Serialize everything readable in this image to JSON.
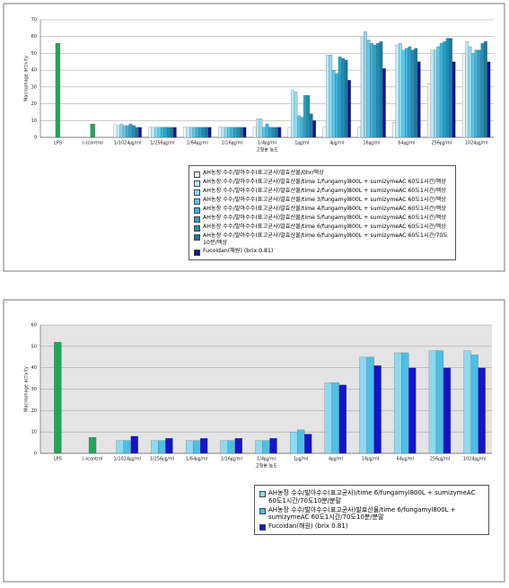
{
  "chart_data": [
    {
      "type": "bar",
      "x_label": "고형분 농도",
      "y_label": "Macrophage activity",
      "categories": [
        "LPS",
        "(-)control",
        "1/1024㎍/ml",
        "1/256㎍/ml",
        "1/64㎍/ml",
        "1/16㎍/ml",
        "1/4㎍/ml",
        "1㎍/ml",
        "4㎍/ml",
        "16㎍/ml",
        "64㎍/ml",
        "256㎍/ml",
        "1024㎍/ml"
      ],
      "ylim": [
        0,
        70
      ],
      "yticks": [
        0,
        10,
        20,
        30,
        40,
        50,
        60,
        70
      ],
      "grid": true,
      "series": [
        {
          "color": "#22a65a",
          "values": [
            56,
            8,
            null,
            null,
            null,
            null,
            null,
            null,
            null,
            null,
            null,
            null,
            null
          ]
        },
        {
          "name": "AH농장 수수/발아수수(표고균사)발효산물/0hr/액상",
          "color": "#eef8fb",
          "values": [
            null,
            null,
            8,
            6,
            6,
            6,
            6,
            6,
            6,
            6,
            9,
            32,
            50
          ]
        },
        {
          "name": "AH농장 수수/발아수수(표고균사)발효산물/time 1/fungamyl800L + sumizymeAC 60도1시간/액상",
          "color": "#bfe9f5",
          "values": [
            null,
            null,
            7,
            6,
            6,
            6,
            11,
            28,
            49,
            60,
            55,
            52,
            57
          ]
        },
        {
          "name": "AH농장 수수/발아수수(표고균사)발효산물/time 2/fungamyl800L + sumizymeAC 60도1시간/액상",
          "color": "#8fdaf0",
          "values": [
            null,
            null,
            8,
            6,
            6,
            6,
            11,
            27,
            49,
            63,
            56,
            52,
            54
          ]
        },
        {
          "name": "AH농장 수수/발아수수(표고균사)발효산물/time 3/fungamyl800L + sumizymeAC 60도1시간/액상",
          "color": "#5cc8e8",
          "values": [
            null,
            null,
            7,
            6,
            6,
            6,
            6,
            13,
            40,
            58,
            52,
            54,
            50
          ]
        },
        {
          "name": "AH농장 수수/발아수수(표고균사)발효산물/time 4/fungamyl800L + sumizymeAC 60도1시간/액상",
          "color": "#3ab4da",
          "values": [
            null,
            null,
            7,
            6,
            6,
            6,
            8,
            12,
            38,
            56,
            53,
            56,
            52
          ]
        },
        {
          "name": "AH농장 수수/발아수수(표고균사)발효산물/time 5/fungamyl800L + sumizymeAC 60도1시간/액상",
          "color": "#2aa0c8",
          "values": [
            null,
            null,
            8,
            6,
            6,
            6,
            6,
            25,
            48,
            55,
            54,
            57,
            52
          ]
        },
        {
          "name": "AH농장 수수/발아수수(표고균사)발효산물/time 6/fungamyl800L + sumizymeAC 60도1시간/액상",
          "color": "#1f8db5",
          "values": [
            null,
            null,
            7,
            6,
            6,
            6,
            6,
            25,
            47,
            56,
            52,
            59,
            56
          ]
        },
        {
          "name": "AH농장 수수/발아수수(표고균사)발효산물/time 6/fungamyl800L + sumizymeAC 60도1시간/70도10분/액상",
          "color": "#177a9e",
          "values": [
            null,
            null,
            6,
            6,
            6,
            6,
            6,
            14,
            46,
            57,
            53,
            59,
            57
          ]
        },
        {
          "name": "Fucoidan(해원) (brix 0.81)",
          "color": "#14149a",
          "values": [
            null,
            null,
            6,
            6,
            6,
            6,
            6,
            10,
            34,
            41,
            45,
            45,
            45
          ]
        }
      ]
    },
    {
      "type": "bar",
      "x_label": "고형분 농도",
      "y_label": "Macrophage activity",
      "categories": [
        "LPS",
        "(-)control",
        "1/1024㎍/ml",
        "1/256㎍/ml",
        "1/64㎍/ml",
        "1/16㎍/ml",
        "1/4㎍/ml",
        "1㎍/ml",
        "4㎍/ml",
        "16㎍/ml",
        "64㎍/ml",
        "256㎍/ml",
        "1024㎍/ml"
      ],
      "ylim": [
        0,
        60
      ],
      "yticks": [
        0,
        10,
        20,
        30,
        40,
        50,
        60
      ],
      "grid": true,
      "series": [
        {
          "color": "#22a65a",
          "values": [
            52,
            7.5,
            null,
            null,
            null,
            null,
            null,
            null,
            null,
            null,
            null,
            null,
            null
          ]
        },
        {
          "name": "AH농장 수수/발아수수(표고균사)/time 6/fungamyl800L + sumizymeAC 60도1시간/70도10분/분말",
          "color": "#8fdaf0",
          "values": [
            null,
            null,
            6,
            6,
            6,
            6,
            6,
            10,
            33,
            45,
            47,
            48,
            48
          ]
        },
        {
          "name": "AH농장 수수/발아수수(표고균사)발효산물/time 6/fungamyl800L + sumizymeAC 60도1시간/70도10분/분말",
          "color": "#4cc0e4",
          "values": [
            null,
            null,
            6,
            6,
            6,
            6,
            6,
            11,
            33,
            45,
            47,
            48,
            46
          ]
        },
        {
          "name": "Fucoidan(해원) (brix 0.81)",
          "color": "#1414c8",
          "values": [
            null,
            null,
            8,
            7,
            7,
            7,
            7,
            9,
            32,
            41,
            40,
            40,
            40
          ]
        }
      ]
    }
  ]
}
